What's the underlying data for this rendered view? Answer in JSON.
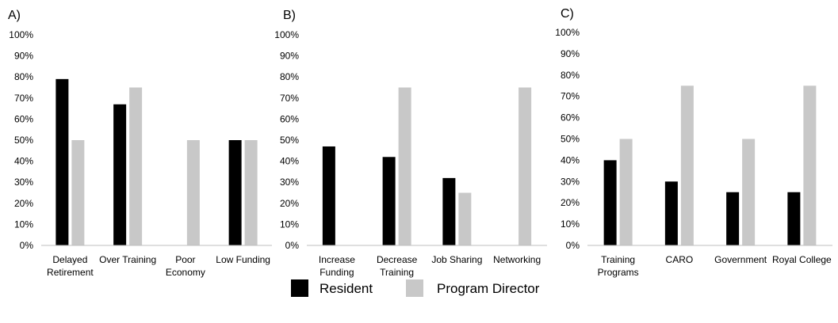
{
  "colors": {
    "resident": "#000000",
    "program_director": "#c8c8c8",
    "axis": "#bfbfbf"
  },
  "legend": [
    {
      "key": "resident",
      "label": "Resident"
    },
    {
      "key": "program_director",
      "label": "Program Director"
    }
  ],
  "chart_data": [
    {
      "type": "bar",
      "panel_label": "A)",
      "ylim": [
        0,
        100
      ],
      "yticks": [
        "0%",
        "10%",
        "20%",
        "30%",
        "40%",
        "50%",
        "60%",
        "70%",
        "80%",
        "90%",
        "100%"
      ],
      "categories": [
        [
          "Delayed",
          "Retirement"
        ],
        [
          "Over Training"
        ],
        [
          "Poor",
          "Economy"
        ],
        [
          "Low Funding"
        ]
      ],
      "series": [
        {
          "name": "Resident",
          "values": [
            79,
            67,
            0,
            50
          ]
        },
        {
          "name": "Program Director",
          "values": [
            50,
            75,
            50,
            50
          ]
        }
      ]
    },
    {
      "type": "bar",
      "panel_label": "B)",
      "ylim": [
        0,
        100
      ],
      "yticks": [
        "0%",
        "10%",
        "20%",
        "30%",
        "40%",
        "50%",
        "60%",
        "70%",
        "80%",
        "90%",
        "100%"
      ],
      "categories": [
        [
          "Increase",
          "Funding"
        ],
        [
          "Decrease",
          "Training"
        ],
        [
          "Job Sharing"
        ],
        [
          "Networking"
        ]
      ],
      "series": [
        {
          "name": "Resident",
          "values": [
            47,
            42,
            32,
            0
          ]
        },
        {
          "name": "Program Director",
          "values": [
            0,
            75,
            25,
            75
          ]
        }
      ]
    },
    {
      "type": "bar",
      "panel_label": "C)",
      "ylim": [
        0,
        100
      ],
      "yticks": [
        "0%",
        "10%",
        "20%",
        "30%",
        "40%",
        "50%",
        "60%",
        "70%",
        "80%",
        "90%",
        "100%"
      ],
      "categories": [
        [
          "Training",
          "Programs"
        ],
        [
          "CARO"
        ],
        [
          "Government"
        ],
        [
          "Royal College"
        ]
      ],
      "series": [
        {
          "name": "Resident",
          "values": [
            40,
            30,
            25,
            25
          ]
        },
        {
          "name": "Program Director",
          "values": [
            50,
            75,
            50,
            75
          ]
        }
      ]
    }
  ]
}
